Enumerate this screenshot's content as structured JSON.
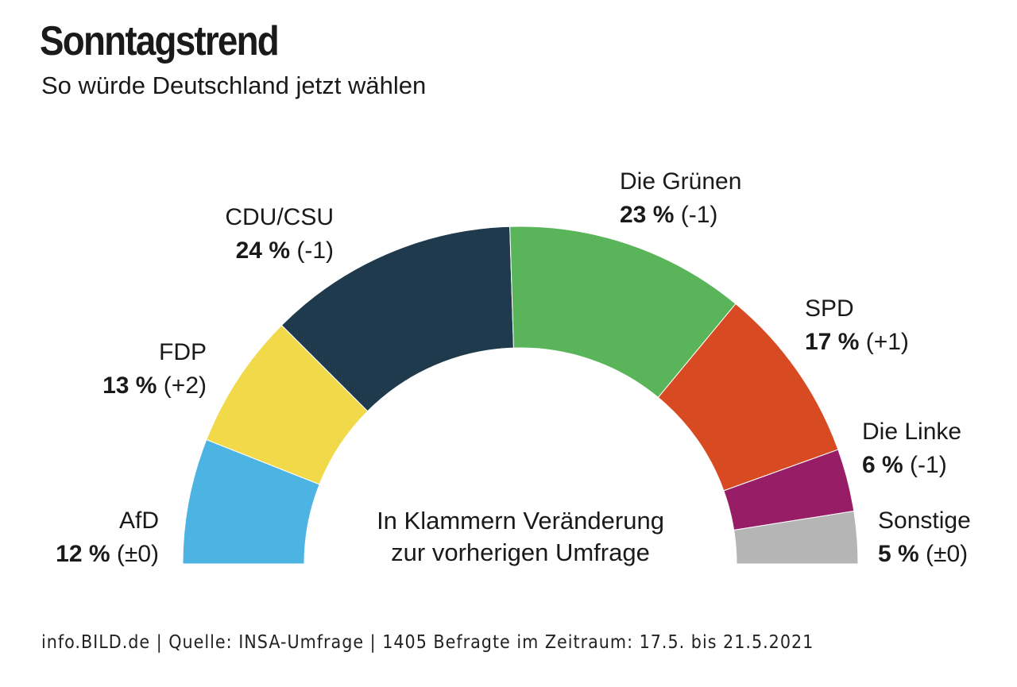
{
  "title": "Sonntagstrend",
  "subtitle": "So würde Deutschland jetzt wählen",
  "note": {
    "line1": "In Klammern Veränderung",
    "line2": "zur vorherigen Umfrage"
  },
  "source": "info.BILD.de | Quelle: INSA-Umfrage | 1405 Befragte im Zeitraum: 17.5. bis 21.5.2021",
  "chart_data": {
    "type": "pie",
    "variant": "semicircle",
    "slices": [
      {
        "name": "AfD",
        "value": 12,
        "unit": "%",
        "change": "(±0)",
        "color": "#4db3e2",
        "label_side": "left"
      },
      {
        "name": "FDP",
        "value": 13,
        "unit": "%",
        "change": "(+2)",
        "color": "#f1d94a",
        "label_side": "left"
      },
      {
        "name": "CDU/CSU",
        "value": 24,
        "unit": "%",
        "change": "(-1)",
        "color": "#1e3a4c",
        "label_side": "left"
      },
      {
        "name": "Die Grünen",
        "value": 23,
        "unit": "%",
        "change": "(-1)",
        "color": "#5ab55a",
        "label_side": "right"
      },
      {
        "name": "SPD",
        "value": 17,
        "unit": "%",
        "change": "(+1)",
        "color": "#d84b22",
        "label_side": "right"
      },
      {
        "name": "Die Linke",
        "value": 6,
        "unit": "%",
        "change": "(-1)",
        "color": "#961d66",
        "label_side": "right"
      },
      {
        "name": "Sonstige",
        "value": 5,
        "unit": "%",
        "change": "(±0)",
        "color": "#b5b5b5",
        "label_side": "right"
      }
    ]
  }
}
